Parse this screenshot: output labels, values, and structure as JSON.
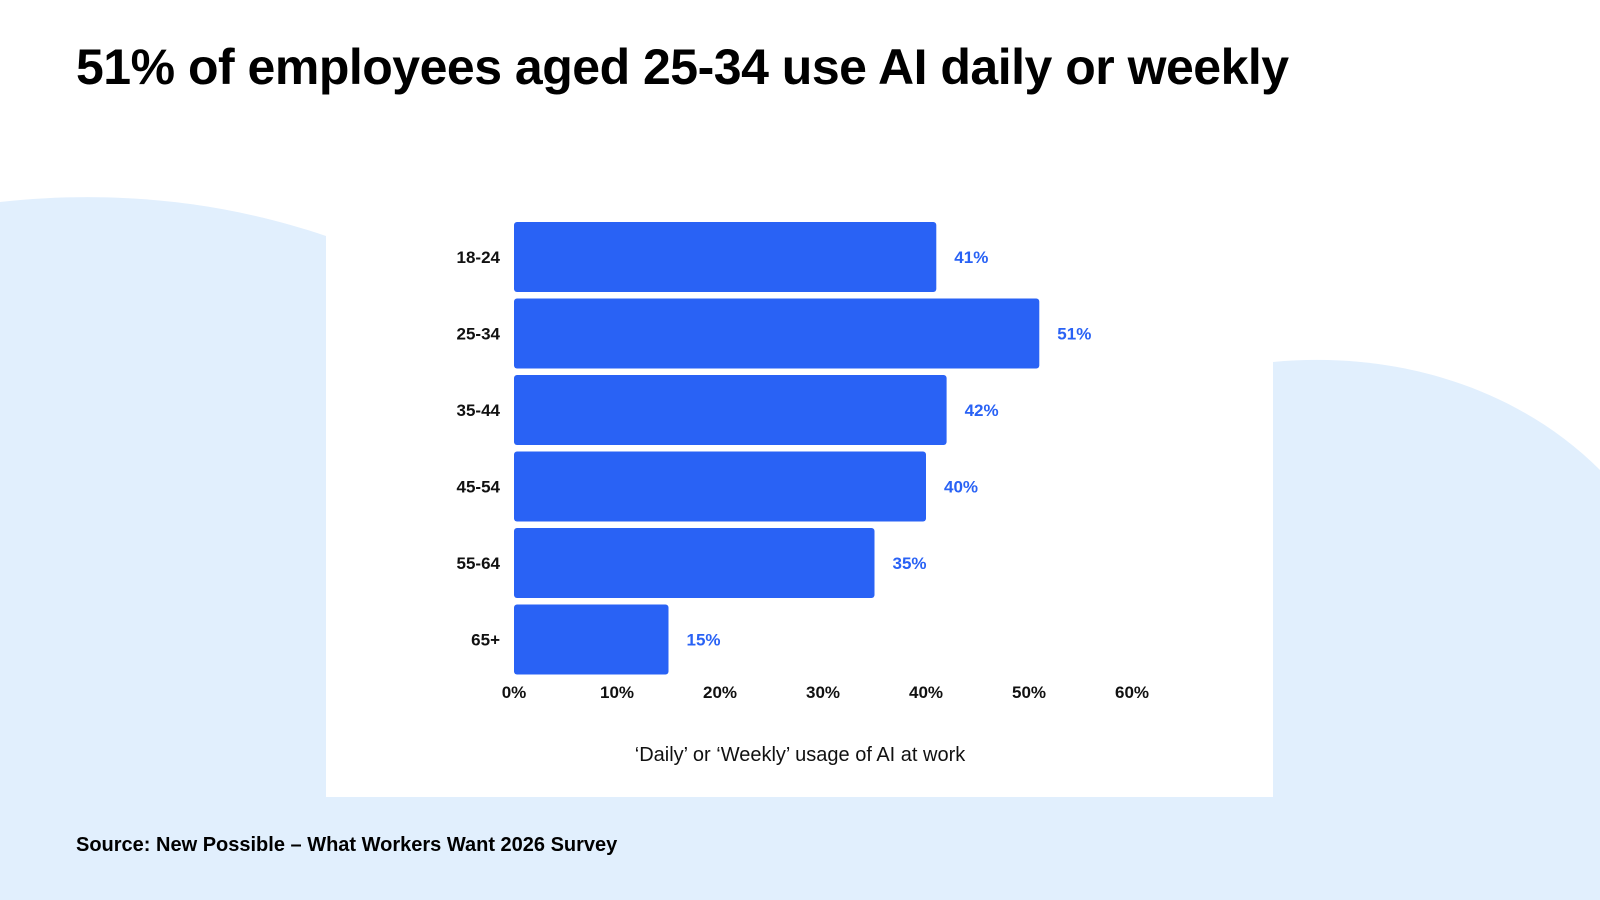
{
  "title": "51% of employees aged 25-34 use AI daily or weekly",
  "source": "Source: New Possible – What Workers Want 2026 Survey",
  "colors": {
    "bar": "#2962F5",
    "value_label": "#2962F5",
    "background_blob": "#E1EFFD",
    "card": "#FFFFFF"
  },
  "chart_data": {
    "type": "bar",
    "orientation": "horizontal",
    "categories": [
      "18-24",
      "25-34",
      "35-44",
      "45-54",
      "55-64",
      "65+"
    ],
    "values": [
      41,
      51,
      42,
      40,
      35,
      15
    ],
    "value_labels": [
      "41%",
      "51%",
      "42%",
      "40%",
      "35%",
      "15%"
    ],
    "xlabel": "‘Daily’ or ‘Weekly’ usage of AI at work",
    "ylabel": "",
    "xlim": [
      0,
      60
    ],
    "xticks": [
      0,
      10,
      20,
      30,
      40,
      50,
      60
    ],
    "xtick_labels": [
      "0%",
      "10%",
      "20%",
      "30%",
      "40%",
      "50%",
      "60%"
    ],
    "grid": false
  }
}
